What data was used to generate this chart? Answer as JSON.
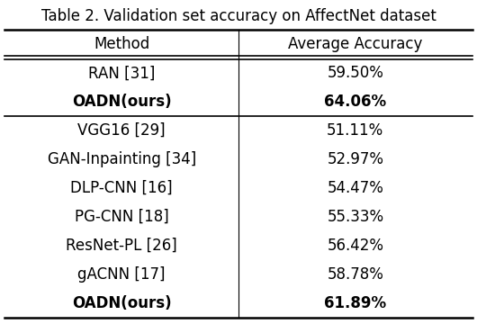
{
  "title": "Table 2. Validation set accuracy on AffectNet dataset",
  "col_headers": [
    "Method",
    "Average Accuracy"
  ],
  "rows": [
    {
      "method": "RAN [31]",
      "accuracy": "59.50%",
      "bold": false
    },
    {
      "method": "OADN(ours)",
      "accuracy": "64.06%",
      "bold": true
    }
  ],
  "rows2": [
    {
      "method": "VGG16 [29]",
      "accuracy": "51.11%",
      "bold": false
    },
    {
      "method": "GAN-Inpainting [34]",
      "accuracy": "52.97%",
      "bold": false
    },
    {
      "method": "DLP-CNN [16]",
      "accuracy": "54.47%",
      "bold": false
    },
    {
      "method": "PG-CNN [18]",
      "accuracy": "55.33%",
      "bold": false
    },
    {
      "method": "ResNet-PL [26]",
      "accuracy": "56.42%",
      "bold": false
    },
    {
      "method": "gACNN [17]",
      "accuracy": "58.78%",
      "bold": false
    },
    {
      "method": "OADN(ours)",
      "accuracy": "61.89%",
      "bold": true
    }
  ],
  "col_split": 0.5,
  "title_fontsize": 12,
  "header_fontsize": 12,
  "data_fontsize": 12,
  "background_color": "#ffffff",
  "text_color": "#000000"
}
